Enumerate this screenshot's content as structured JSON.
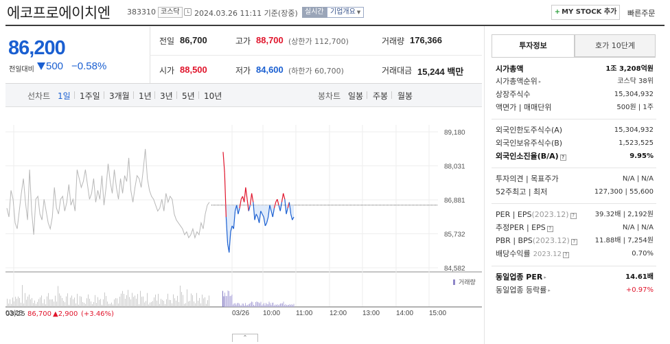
{
  "header": {
    "stock_name": "에코프로에이치엔",
    "stock_code": "383310",
    "market": "코스닥",
    "datetime": "2024.03.26 11:11 기준(장중)",
    "realtime_badge": "실시간",
    "overview_button": "기업개요",
    "mystock_button": "MY STOCK 추가",
    "quick_order": "빠른주문"
  },
  "price": {
    "current": "86,200",
    "change_label": "전일대비",
    "change_abs": "500",
    "change_pct": "−0.58%",
    "direction": "down",
    "color": "#1a5fd1"
  },
  "summary": {
    "prev_close_label": "전일",
    "prev_close": "86,700",
    "high_label": "고가",
    "high": "88,700",
    "upper_limit": "(상한가 112,700)",
    "volume_label": "거래량",
    "volume": "176,366",
    "open_label": "시가",
    "open": "88,500",
    "low_label": "저가",
    "low": "84,600",
    "lower_limit": "(하한가 60,700)",
    "amount_label": "거래대금",
    "amount": "15,244 백만"
  },
  "toolbar": {
    "line_chart_label": "선차트",
    "line_periods": [
      "1일",
      "1주일",
      "3개월",
      "1년",
      "3년",
      "5년",
      "10년"
    ],
    "active_period": "1일",
    "candle_label": "봉차트",
    "candle_periods": [
      "일봉",
      "주봉",
      "월봉"
    ]
  },
  "chart_data": {
    "type": "line",
    "ylim": [
      84582,
      89180
    ],
    "y_ticks": [
      "89,180",
      "88,031",
      "86,881",
      "85,732",
      "84,582"
    ],
    "x_ticks": [
      "03/25",
      "03/26",
      "10:00",
      "11:00",
      "12:00",
      "13:00",
      "14:00",
      "15:00"
    ],
    "reference_price": 86700,
    "volume_label": "거래량",
    "prev_day_footer": {
      "date": "03/25",
      "close": "86,700",
      "change": "▲2,900",
      "pct": "(+3.46%)"
    },
    "prev_day_prices": [
      86600,
      86300,
      87200,
      86900,
      86100,
      85900,
      86500,
      87100,
      87600,
      86800,
      86200,
      87900,
      86500,
      85700,
      86900,
      87000,
      86400,
      86200,
      86900,
      86500,
      86100,
      85900,
      86300,
      87300,
      86600,
      86400,
      86900,
      87000,
      86500,
      86800,
      87400,
      86700,
      86900,
      86500,
      87900,
      87600,
      87300,
      87500,
      87900,
      87400,
      86900,
      87100,
      87600,
      86800,
      87200,
      86900,
      87700,
      86700,
      87300,
      88100,
      87500,
      87100,
      87900,
      87300,
      86900,
      87600,
      87100,
      87700,
      87500,
      88300,
      87200,
      86800,
      87300,
      87700,
      87600,
      87300,
      87900,
      88600,
      87600,
      87200,
      87000,
      86900,
      86700,
      86500,
      86600,
      86900,
      86500,
      87100,
      86800,
      87000,
      86900,
      86400,
      86200,
      86100,
      86000,
      85900,
      85700,
      85800,
      85600,
      85700,
      85900,
      85600,
      85800,
      85700,
      86100,
      85900,
      86400,
      86700,
      86800
    ],
    "today_prices": [
      88500,
      87800,
      86300,
      85400,
      85100,
      85800,
      86000,
      85900,
      86500,
      86700,
      86400,
      86600,
      86900,
      87000,
      86800,
      87300,
      86900,
      86500,
      86700,
      87100,
      86800,
      86200,
      86400,
      86300,
      86100,
      86500,
      86400,
      86300,
      86000,
      86100,
      86300,
      86700,
      86500,
      86300,
      86600,
      86800,
      86900,
      86700,
      86500,
      86800,
      87100,
      86900,
      86400,
      86600,
      86800,
      86400,
      86200,
      86300
    ]
  },
  "info": {
    "tab_active": "투자정보",
    "tab_inactive": "호가 10단계",
    "market_cap_label": "시가총액",
    "market_cap": "1조 3,208억원",
    "market_cap_rank_label": "시가총액순위",
    "market_cap_rank": "코스닥 38위",
    "shares_label": "상장주식수",
    "shares": "15,304,932",
    "face_value_label": "액면가 | 매매단위",
    "face_value": "500원 | 1주",
    "foreign_limit_label": "외국인한도주식수(A)",
    "foreign_limit": "15,304,932",
    "foreign_hold_label": "외국인보유주식수(B)",
    "foreign_hold": "1,523,525",
    "foreign_ratio_label": "외국인소진율(B/A)",
    "foreign_ratio": "9.95%",
    "opinion_label": "투자의견 | 목표주가",
    "opinion": "N/A | N/A",
    "week52_label": "52주최고 | 최저",
    "week52": "127,300 | 55,600",
    "per_eps_label": "PER | EPS",
    "per_eps_year": "(2023.12)",
    "per_eps": "39.32배 | 2,192원",
    "est_per_label": "추정PER | EPS",
    "est_per": "N/A | N/A",
    "pbr_bps_label": "PBR | BPS",
    "pbr_bps_year": "(2023.12)",
    "pbr_bps": "11.88배 | 7,254원",
    "dividend_label": "배당수익률",
    "dividend_year": "2023.12",
    "dividend": "0.70%",
    "industry_per_label": "동일업종 PER",
    "industry_per": "14.61배",
    "industry_chg_label": "동일업종 등락률",
    "industry_chg": "+0.97%"
  },
  "footer": {
    "expand_symbol": "⌃"
  }
}
